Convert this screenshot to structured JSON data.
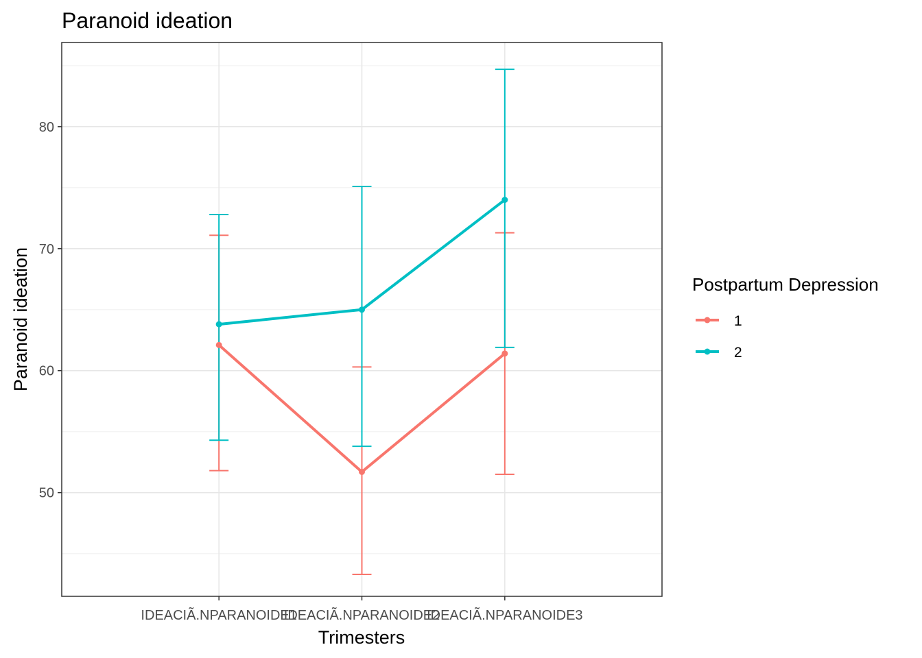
{
  "chart_data": {
    "type": "line",
    "title": "Paranoid ideation",
    "xlabel": "Trimesters",
    "ylabel": "Paranoid ideation",
    "categories": [
      "IDEACIÃ.NPARANOIDE1",
      "IDEACIÃ.NPARANOIDE2",
      "IDEACIÃ.NPARANOIDE3"
    ],
    "ylim": [
      41.5,
      86.9
    ],
    "yticks": [
      50,
      60,
      70,
      80
    ],
    "grid": true,
    "error_bars": true,
    "legend": {
      "title": "Postpartum Depression",
      "position": "right"
    },
    "series": [
      {
        "name": "1",
        "color": "#F8766D",
        "values": [
          62.1,
          51.7,
          61.4
        ],
        "lower": [
          51.8,
          43.3,
          51.5
        ],
        "upper": [
          71.1,
          60.3,
          71.3
        ]
      },
      {
        "name": "2",
        "color": "#00BFC4",
        "values": [
          63.8,
          65.0,
          74.0
        ],
        "lower": [
          54.3,
          53.8,
          61.9
        ],
        "upper": [
          72.8,
          75.1,
          84.7
        ]
      }
    ]
  }
}
